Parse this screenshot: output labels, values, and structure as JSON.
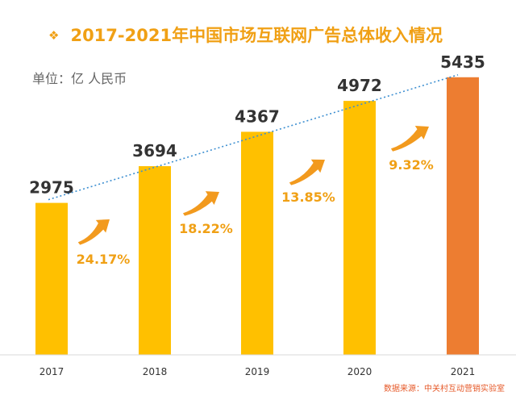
{
  "title_bullet": "❖",
  "title": "2017-2021年中国市场互联网广告总体收入情况",
  "unit": "单位：亿 人民币",
  "source": "数据来源：中关村互动营销实验室",
  "colors": {
    "title": "#F0A015",
    "bar": "#FFC000",
    "bar_highlight": "#ED7D31",
    "growth_text": "#F0A015",
    "trendline": "#3D8FD1",
    "arrow": "#F29A1E"
  },
  "chart_data": {
    "type": "bar",
    "categories": [
      "2017",
      "2018",
      "2019",
      "2020",
      "2021"
    ],
    "values": [
      2975,
      3694,
      4367,
      4972,
      5435
    ],
    "growth_labels": [
      "24.17%",
      "18.22%",
      "13.85%",
      "9.32%"
    ],
    "title": "2017-2021年中国市场互联网广告总体收入情况",
    "ylabel": "单位：亿 人民币",
    "ylim": [
      0,
      6000
    ],
    "grid": false,
    "legend": "none",
    "highlight_index": 4,
    "trendline": "dotted-linear"
  }
}
